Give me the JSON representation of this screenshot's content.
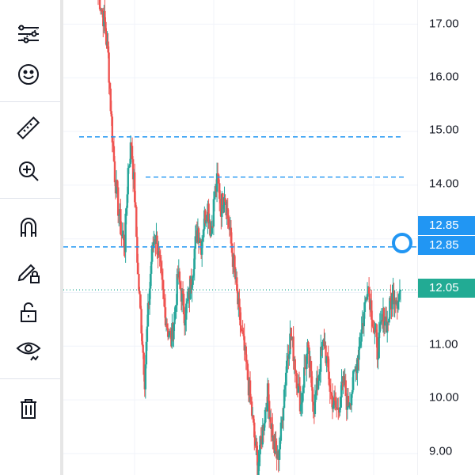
{
  "toolbar": {
    "items": [
      {
        "name": "trend-line-tools-icon",
        "icon": "trend-lines"
      },
      {
        "name": "emoji-icon",
        "icon": "smiley"
      },
      {
        "name": "ruler-icon",
        "icon": "ruler"
      },
      {
        "name": "zoom-in-icon",
        "icon": "magnifier-plus"
      },
      {
        "name": "magnet-icon",
        "icon": "magnet"
      },
      {
        "name": "lock-drawing-pencil-icon",
        "icon": "pencil-lock"
      },
      {
        "name": "unlock-icon",
        "icon": "padlock-open"
      },
      {
        "name": "hide-drawings-eye-icon",
        "icon": "eye"
      },
      {
        "name": "trash-icon",
        "icon": "trash"
      }
    ]
  },
  "colors": {
    "up": "#26a69a",
    "down": "#ef5350",
    "line": "#2962ff",
    "hline": "#2196f3",
    "badge_blue": "#2196f3",
    "badge_green": "#22ab94"
  },
  "price_axis": {
    "ticks": [
      "17.00",
      "16.00",
      "15.00",
      "14.00",
      "11.00",
      "10.00",
      "9.00"
    ]
  },
  "badges": {
    "hline_upper": "12.85",
    "hline_selected": "12.85",
    "last_price": "12.05"
  },
  "chart_data": {
    "type": "candlestick",
    "ylim": [
      8.6,
      17.45
    ],
    "horizontal_lines": [
      14.9,
      14.15,
      12.85
    ],
    "last_price": 12.05,
    "close_series": [
      17.6,
      17.3,
      17.0,
      16.4,
      15.2,
      14.2,
      13.6,
      13.1,
      12.9,
      14.3,
      14.8,
      13.8,
      12.3,
      11.4,
      10.4,
      11.6,
      12.6,
      13.1,
      12.8,
      12.2,
      11.7,
      11.3,
      11.1,
      11.6,
      12.3,
      12.0,
      11.6,
      11.8,
      12.2,
      12.8,
      13.2,
      12.9,
      13.4,
      13.6,
      13.1,
      13.8,
      14.1,
      13.6,
      13.9,
      13.4,
      12.9,
      12.4,
      11.8,
      11.3,
      10.9,
      10.4,
      9.9,
      9.3,
      8.8,
      9.2,
      9.7,
      10.1,
      9.6,
      9.1,
      8.9,
      9.4,
      10.2,
      10.9,
      11.2,
      10.8,
      10.3,
      9.9,
      10.5,
      10.9,
      10.4,
      9.9,
      10.3,
      10.8,
      11.1,
      10.6,
      10.1,
      9.9,
      9.8,
      10.1,
      10.3,
      9.9,
      10.1,
      10.4,
      10.8,
      11.2,
      11.6,
      12.2,
      11.8,
      11.3,
      10.9,
      11.3,
      11.6,
      11.4,
      11.8,
      12.0,
      11.9,
      12.05
    ]
  }
}
